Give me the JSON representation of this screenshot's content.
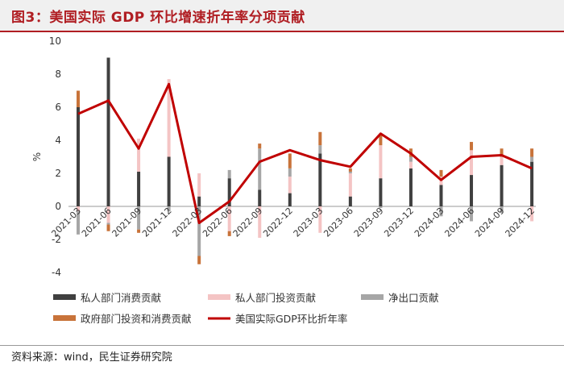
{
  "title": "图3：美国实际 GDP 环比增速折年率分项贡献",
  "source": "资料来源：wind，民生证券研究院",
  "chart_data": {
    "type": "bar",
    "stacked": true,
    "ylabel": "%",
    "ylim": [
      -4,
      10
    ],
    "yticks": [
      -4,
      -2,
      0,
      2,
      4,
      6,
      8,
      10
    ],
    "categories": [
      "2021-03",
      "2021-06",
      "2021-09",
      "2021-12",
      "2022-03",
      "2022-06",
      "2022-09",
      "2022-12",
      "2023-03",
      "2023-06",
      "2023-09",
      "2023-12",
      "2024-03",
      "2024-06",
      "2024-09",
      "2024-12"
    ],
    "series": [
      {
        "name": "私人部门消费贡献",
        "color": "#404040",
        "values": [
          6.0,
          9.0,
          2.1,
          3.0,
          0.6,
          1.7,
          1.0,
          0.8,
          3.2,
          0.6,
          1.7,
          2.3,
          1.3,
          1.9,
          2.5,
          2.7
        ]
      },
      {
        "name": "私人部门投资贡献",
        "color": "#f4c4c4",
        "values": [
          -0.3,
          -1.0,
          2.0,
          4.7,
          1.4,
          -1.5,
          -1.9,
          1.0,
          -1.6,
          1.4,
          2.0,
          0.4,
          0.5,
          1.5,
          0.5,
          -0.9
        ]
      },
      {
        "name": "净出口贡献",
        "color": "#a6a6a6",
        "values": [
          -1.4,
          -0.1,
          -1.4,
          -0.3,
          -3.0,
          0.5,
          2.5,
          0.5,
          0.5,
          0.1,
          -0.1,
          0.3,
          -0.6,
          -0.9,
          -0.4,
          0.3
        ]
      },
      {
        "name": "政府部门投资和消费贡献",
        "color": "#c8733a",
        "values": [
          1.0,
          -0.4,
          -0.2,
          0.0,
          -0.5,
          -0.3,
          0.3,
          0.9,
          0.8,
          0.2,
          0.6,
          0.5,
          0.4,
          0.5,
          0.5,
          0.5
        ]
      }
    ],
    "line": {
      "name": "美国实际GDP环比折年率",
      "color": "#c00000",
      "values": [
        5.6,
        6.4,
        3.5,
        7.4,
        -1.0,
        0.3,
        2.7,
        3.4,
        2.8,
        2.4,
        4.4,
        3.2,
        1.6,
        3.0,
        3.1,
        2.3
      ]
    },
    "legend_position": "bottom"
  }
}
